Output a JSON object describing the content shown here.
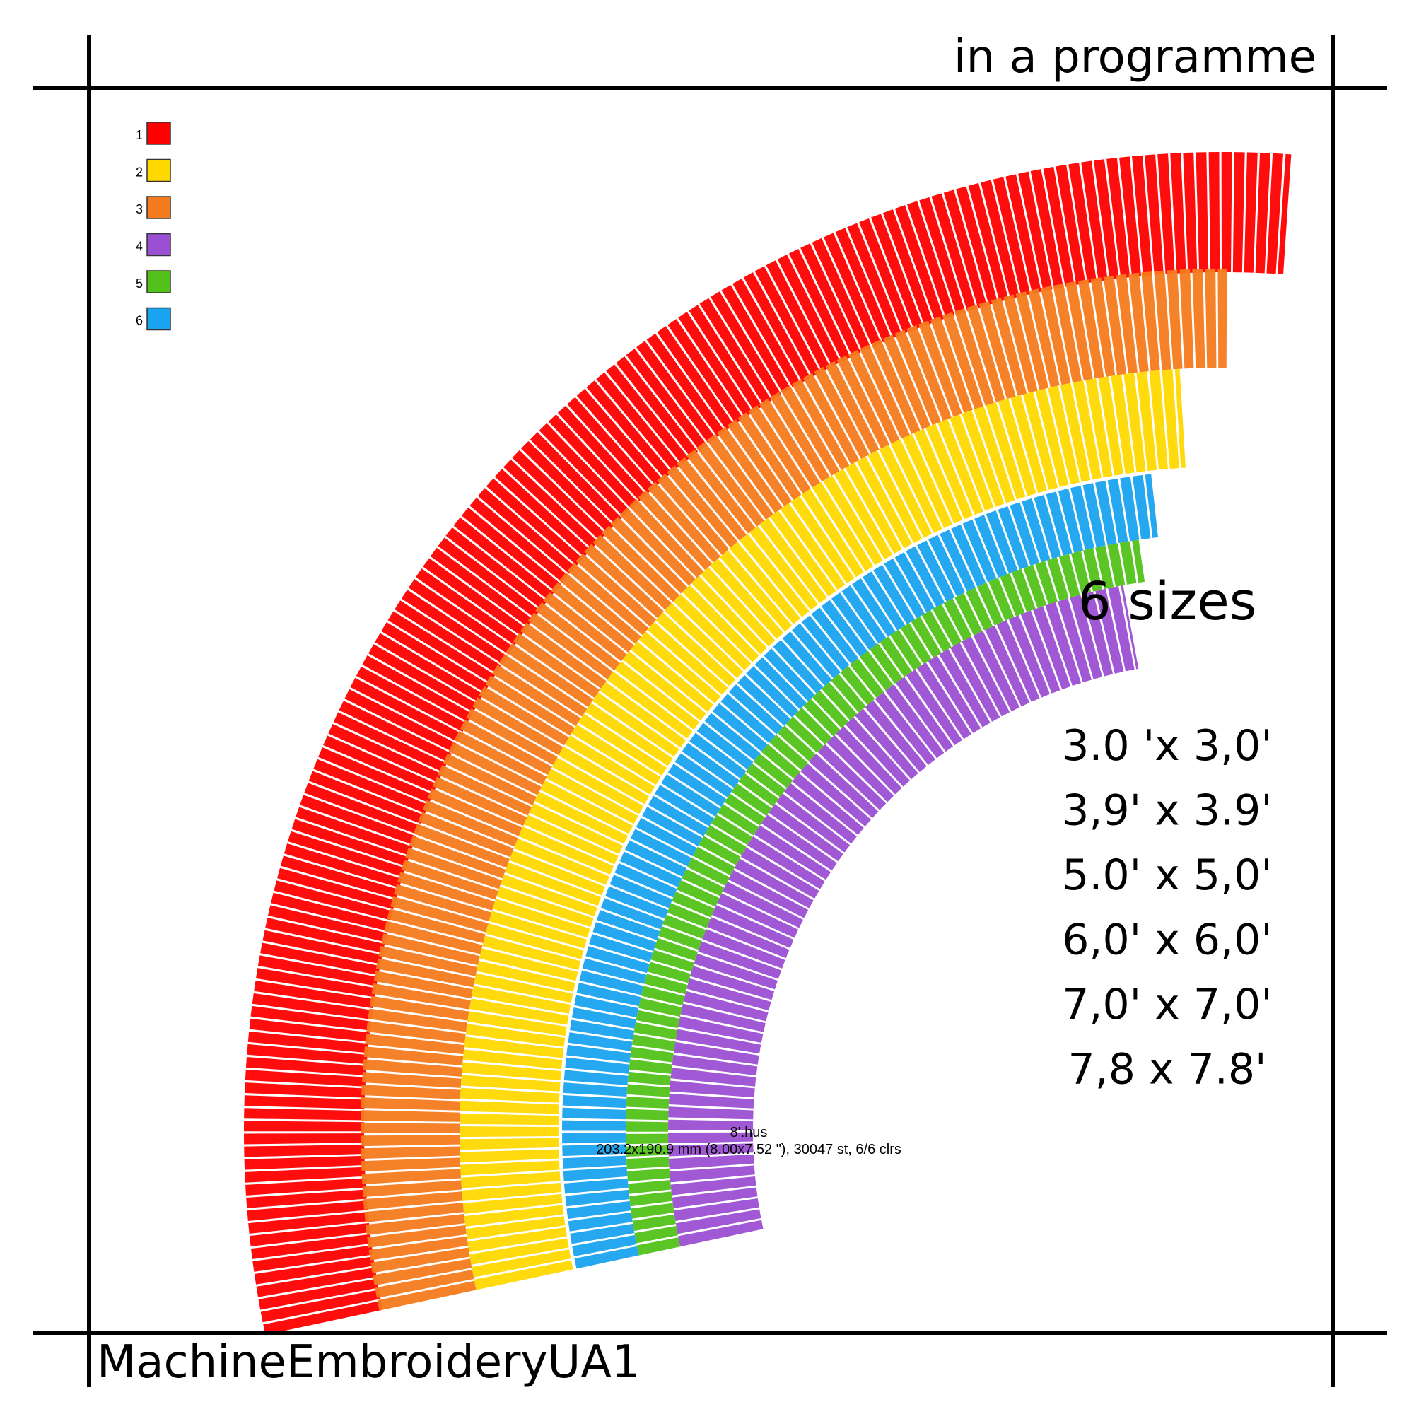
{
  "header": {
    "title": "in a programme"
  },
  "legend": [
    {
      "number": 1,
      "color": "#ff0000"
    },
    {
      "number": 2,
      "color": "#ffd800"
    },
    {
      "number": 3,
      "color": "#f47a1e"
    },
    {
      "number": 4,
      "color": "#9b4fd2"
    },
    {
      "number": 5,
      "color": "#52c21a"
    },
    {
      "number": 6,
      "color": "#1aa3ef"
    }
  ],
  "sizes": {
    "title": "6 sizes",
    "items": [
      "3.0 'x 3,0'",
      "3,9' x 3.9'",
      "5.0' x 5,0'",
      "6,0' x 6,0'",
      "7,0' x 7,0'",
      "7,8 x 7.8'"
    ]
  },
  "file": {
    "name": "8'.hus",
    "info": "203.2x190.9 mm (8.00x7.52 \"), 30047 st, 6/6 clrs"
  },
  "footer": {
    "brand": "MachineEmbroideryUA1"
  }
}
